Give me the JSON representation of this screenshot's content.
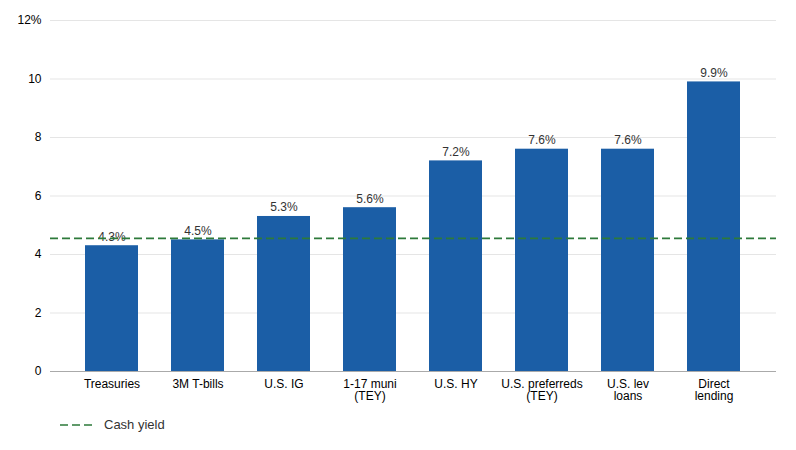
{
  "chart_data": {
    "type": "bar",
    "categories": [
      "Treasuries",
      "3M T-bills",
      "U.S. IG",
      "1-17 muni\n(TEY)",
      "U.S. HY",
      "U.S. preferreds\n(TEY)",
      "U.S. lev\nloans",
      "Direct\nlending"
    ],
    "values": [
      4.3,
      4.5,
      5.3,
      5.6,
      7.2,
      7.6,
      7.6,
      9.9
    ],
    "value_labels": [
      "4.3%",
      "4.5%",
      "5.3%",
      "5.6%",
      "7.2%",
      "7.6%",
      "7.6%",
      "9.9%"
    ],
    "data_labels": true,
    "color": "#1B5EA6",
    "ylim": [
      0,
      12
    ],
    "yticks": [
      0,
      2,
      4,
      6,
      8,
      10,
      {
        "value": 12,
        "label": "12%"
      }
    ],
    "grid": true,
    "legend": "bottom",
    "reference_lines": [
      {
        "name": "Cash yield",
        "value": 4.55,
        "color": "#2D7A3A",
        "line_style": "dashed"
      }
    ]
  }
}
